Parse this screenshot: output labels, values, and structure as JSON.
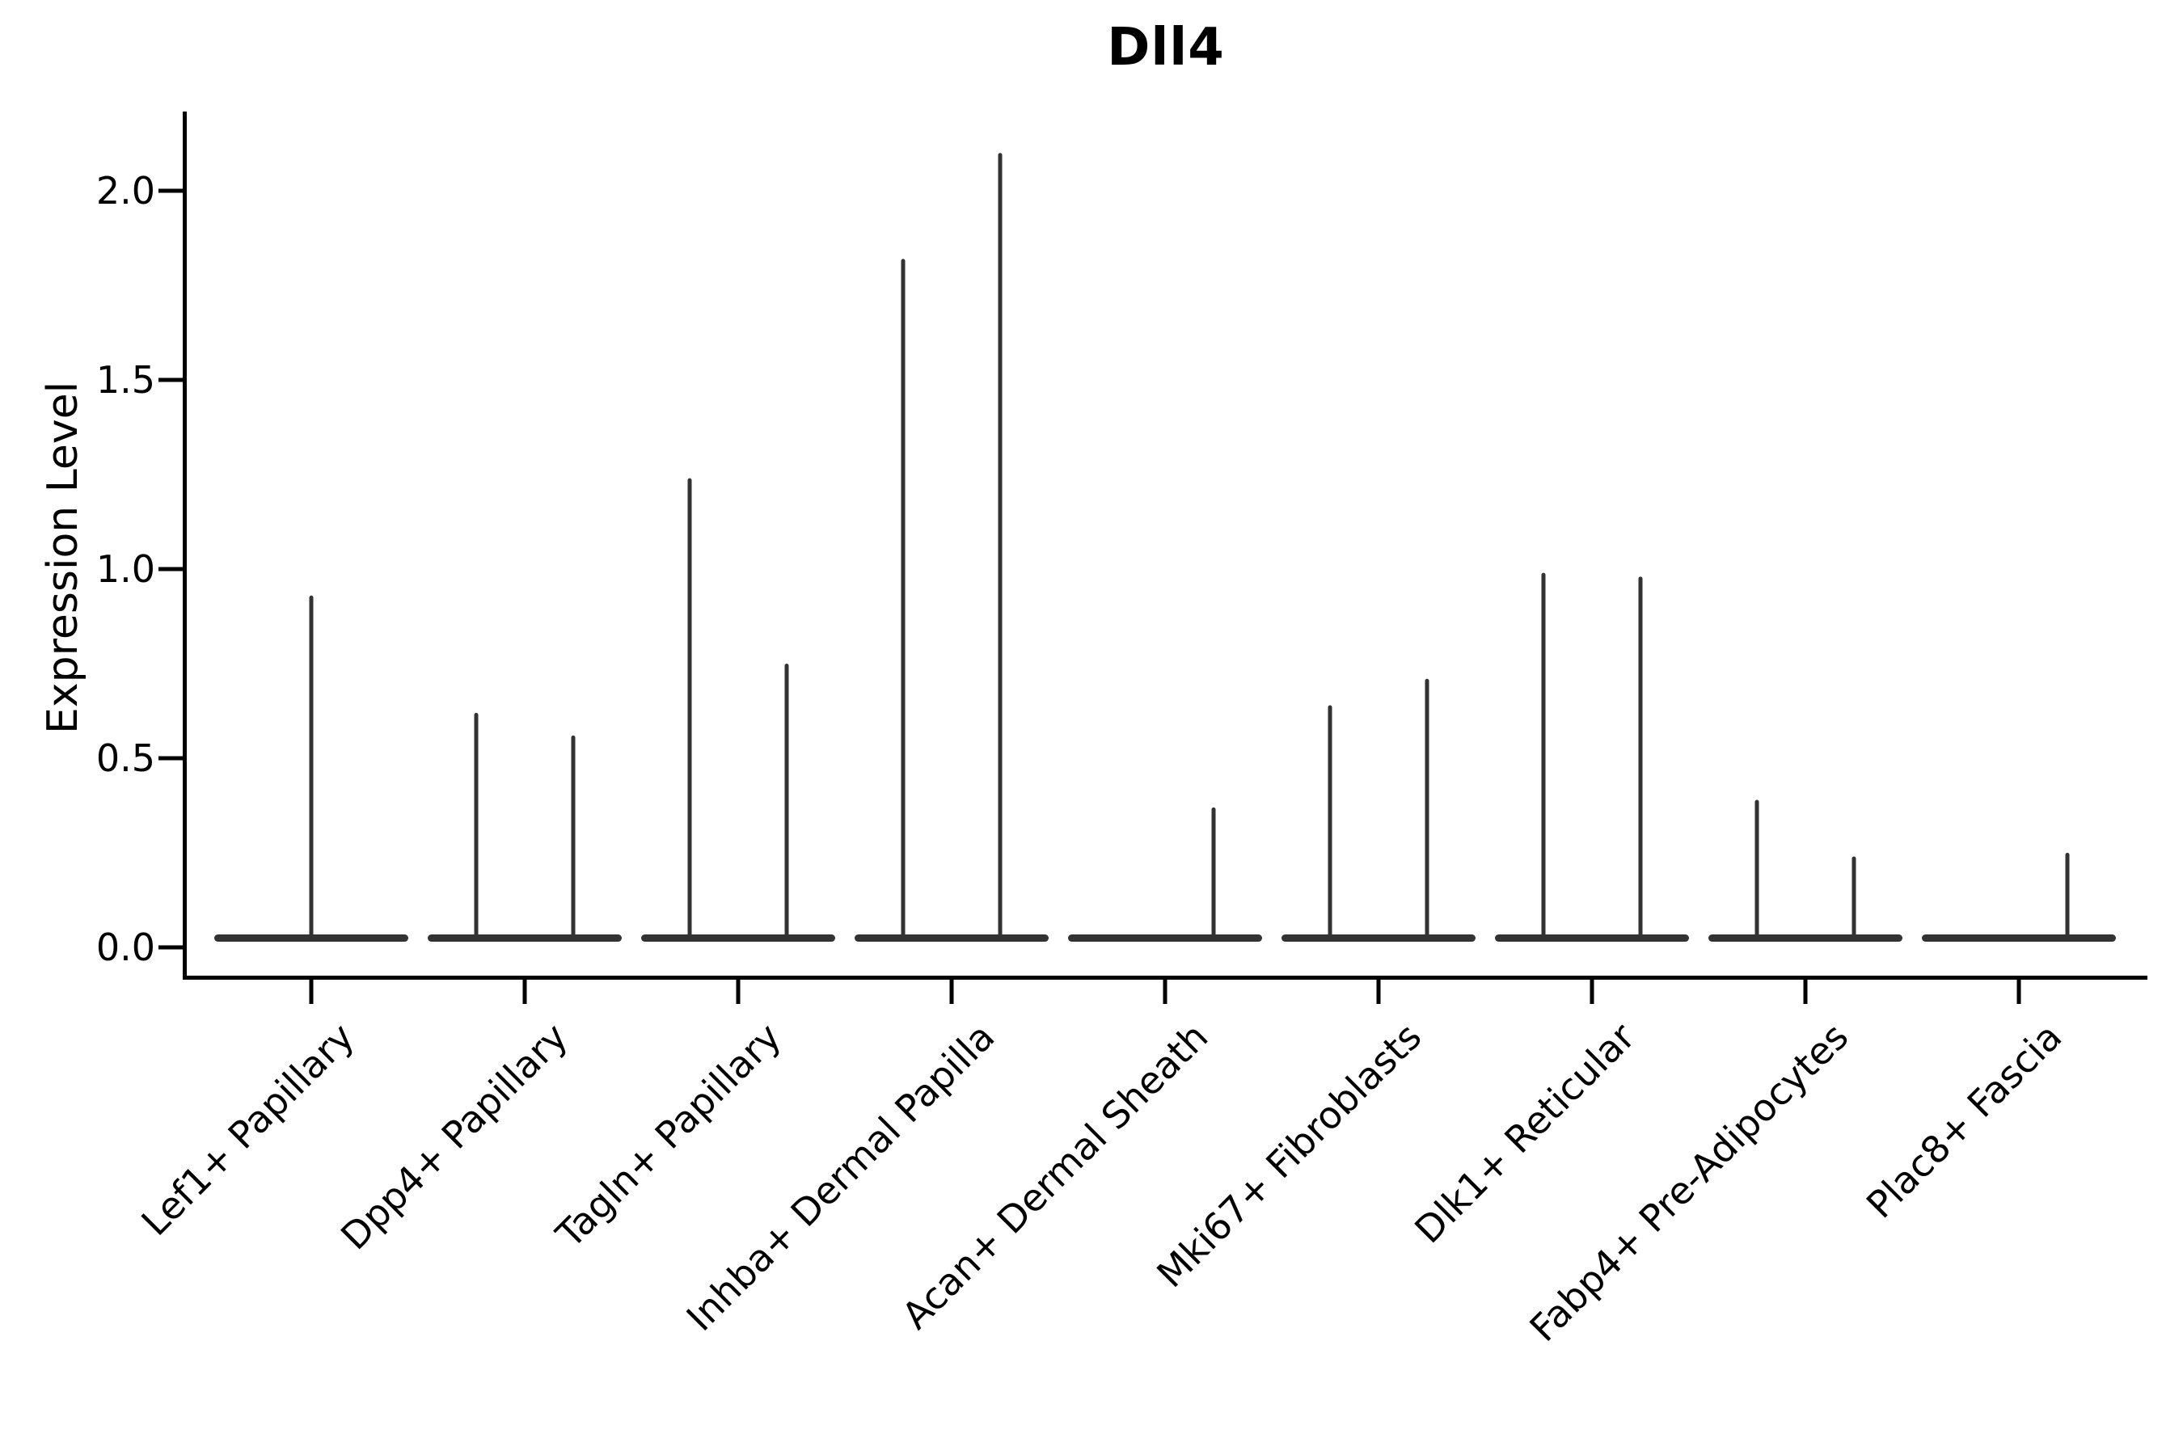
{
  "figure": {
    "title": "Dll4"
  },
  "axes": {
    "y_label": "Expression Level",
    "y_ticks": [
      {
        "label": "0.0",
        "value": 0.0
      },
      {
        "label": "0.5",
        "value": 0.5
      },
      {
        "label": "1.0",
        "value": 1.0
      },
      {
        "label": "1.5",
        "value": 1.5
      },
      {
        "label": "2.0",
        "value": 2.0
      }
    ]
  },
  "style": {
    "ink": "#333333",
    "axis": "#000000",
    "background": "#ffffff"
  },
  "chart_data": {
    "type": "violin",
    "title": "Dll4",
    "xlabel": "",
    "ylabel": "Expression Level",
    "ylim": [
      -0.1,
      2.2
    ],
    "yticks": [
      0.0,
      0.5,
      1.0,
      1.5,
      2.0
    ],
    "grid": false,
    "legend_position": "none",
    "categories": [
      "Lef1+ Papillary",
      "Dpp4+ Papillary",
      "Tagln+ Papillary",
      "Inhba+ Dermal Papilla",
      "Acan+ Dermal Sheath",
      "Mki67+ Fibroblasts",
      "Dlk1+ Reticular",
      "Fabp4+ Pre-Adipocytes",
      "Plac8+ Fascia"
    ],
    "series": [
      {
        "category": "Lef1+ Papillary",
        "violins": [
          {
            "position": "center",
            "max_expression": 0.93
          }
        ]
      },
      {
        "category": "Dpp4+ Papillary",
        "violins": [
          {
            "position": "left",
            "max_expression": 0.62
          },
          {
            "position": "right",
            "max_expression": 0.56
          }
        ]
      },
      {
        "category": "Tagln+ Papillary",
        "violins": [
          {
            "position": "left",
            "max_expression": 1.24
          },
          {
            "position": "right",
            "max_expression": 0.75
          }
        ]
      },
      {
        "category": "Inhba+ Dermal Papilla",
        "violins": [
          {
            "position": "left",
            "max_expression": 1.82
          },
          {
            "position": "right",
            "max_expression": 2.1
          }
        ]
      },
      {
        "category": "Acan+ Dermal Sheath",
        "violins": [
          {
            "position": "left",
            "max_expression": 0.0
          },
          {
            "position": "right",
            "max_expression": 0.37
          }
        ]
      },
      {
        "category": "Mki67+ Fibroblasts",
        "violins": [
          {
            "position": "left",
            "max_expression": 0.64
          },
          {
            "position": "right",
            "max_expression": 0.71
          }
        ]
      },
      {
        "category": "Dlk1+ Reticular",
        "violins": [
          {
            "position": "left",
            "max_expression": 0.99
          },
          {
            "position": "right",
            "max_expression": 0.98
          }
        ]
      },
      {
        "category": "Fabp4+ Pre-Adipocytes",
        "violins": [
          {
            "position": "left",
            "max_expression": 0.39
          },
          {
            "position": "right",
            "max_expression": 0.24
          }
        ]
      },
      {
        "category": "Plac8+ Fascia",
        "violins": [
          {
            "position": "left",
            "max_expression": 0.0
          },
          {
            "position": "right",
            "max_expression": 0.25
          }
        ]
      }
    ],
    "note": "Each violin is collapsed at expression 0 (flat body) with a thin spike rising to the maximum expression value; categories with two violins show paired sub-violins merged at the baseline."
  }
}
